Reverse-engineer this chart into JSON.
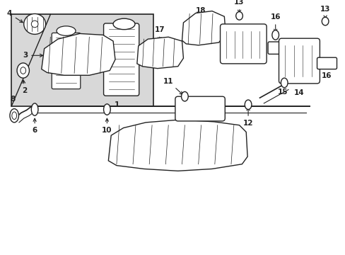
{
  "bg_color": "#ffffff",
  "line_color": "#222222",
  "box_gray": "#d8d8d8",
  "figsize": [
    4.89,
    3.6
  ],
  "dpi": 100
}
